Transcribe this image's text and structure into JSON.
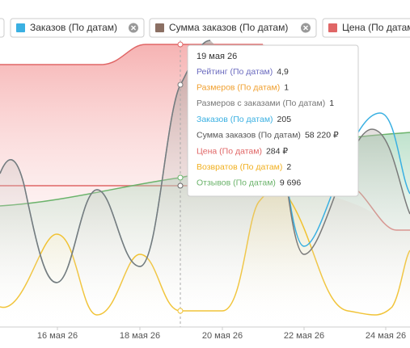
{
  "legend": [
    {
      "label": "Заказов (По датам)"
    },
    {
      "label": "Сумма заказов (По датам)"
    },
    {
      "label": "Цена (По датам)"
    }
  ],
  "tooltip": {
    "title": "19 мая 26",
    "rows": [
      {
        "label": "Рейтинг (По датам)",
        "value": "4,9"
      },
      {
        "label": "Размеров (По датам)",
        "value": "1"
      },
      {
        "label": "Размеров с заказами (По датам)",
        "value": "1"
      },
      {
        "label": "Заказов (По датам)",
        "value": "205"
      },
      {
        "label": "Сумма заказов (По датам)",
        "value": "58 220 ₽"
      },
      {
        "label": "Цена (По датам)",
        "value": "284 ₽"
      },
      {
        "label": "Возвратов (По датам)",
        "value": "2"
      },
      {
        "label": "Отзывов (По датам)",
        "value": "9 696"
      }
    ]
  },
  "x_axis": {
    "labels": [
      "16 мая 26",
      "18 мая 26",
      "20 мая 26",
      "22 мая 26",
      "24 мая 26"
    ]
  }
}
